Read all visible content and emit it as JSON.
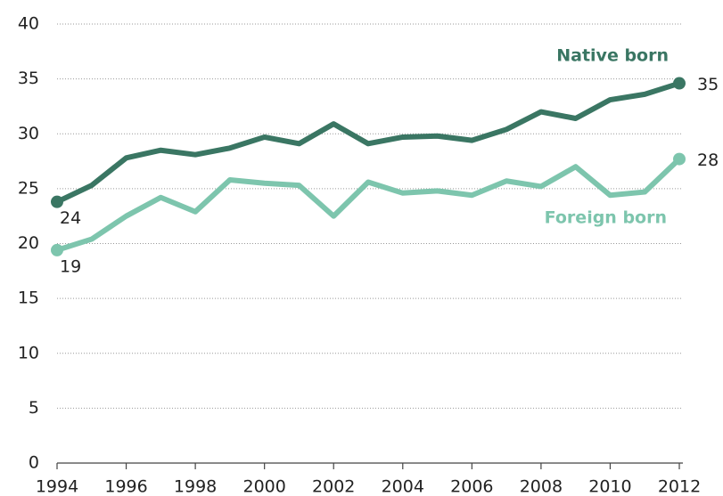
{
  "chart_data": {
    "type": "line",
    "x": [
      1994,
      1995,
      1996,
      1997,
      1998,
      1999,
      2000,
      2001,
      2002,
      2003,
      2004,
      2005,
      2006,
      2007,
      2008,
      2009,
      2010,
      2011,
      2012
    ],
    "series": [
      {
        "name": "Native born",
        "color": "#3a7663",
        "values": [
          23.8,
          25.3,
          27.8,
          28.5,
          28.1,
          28.7,
          29.7,
          29.1,
          30.9,
          29.1,
          29.7,
          29.8,
          29.4,
          30.4,
          32.0,
          31.4,
          33.1,
          33.6,
          34.6
        ],
        "value_labels": [
          "24",
          null,
          null,
          null,
          null,
          null,
          null,
          null,
          null,
          null,
          null,
          null,
          null,
          null,
          null,
          null,
          null,
          null,
          "35"
        ]
      },
      {
        "name": "Foreign born",
        "color": "#7dc5ad",
        "values": [
          19.4,
          20.4,
          22.5,
          24.2,
          22.9,
          25.8,
          25.5,
          25.3,
          22.5,
          25.6,
          24.6,
          24.8,
          24.4,
          25.7,
          25.2,
          27.0,
          24.4,
          24.7,
          27.7
        ],
        "value_labels": [
          "19",
          null,
          null,
          null,
          null,
          null,
          null,
          null,
          null,
          null,
          null,
          null,
          null,
          null,
          null,
          null,
          null,
          null,
          "28"
        ]
      }
    ],
    "xlim": [
      1994,
      2012
    ],
    "xticks": [
      1994,
      1996,
      1998,
      2000,
      2002,
      2004,
      2006,
      2008,
      2010,
      2012
    ],
    "ylim": [
      0,
      40
    ],
    "yticks": [
      0,
      5,
      10,
      15,
      20,
      25,
      30,
      35,
      40
    ],
    "grid": true
  }
}
